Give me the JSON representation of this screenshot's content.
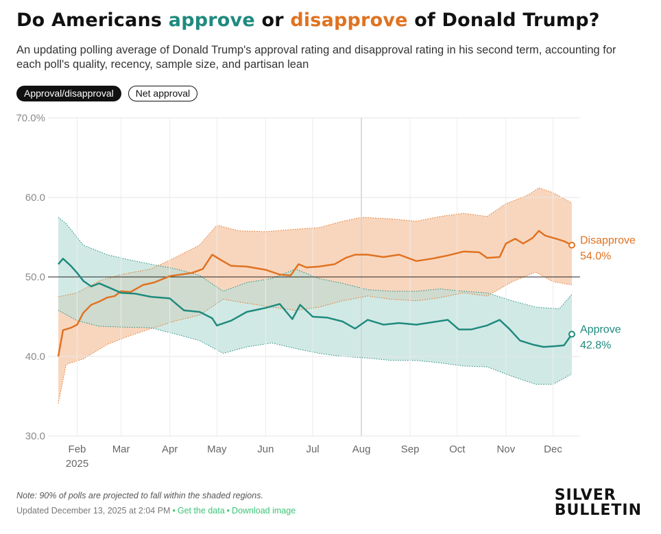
{
  "header": {
    "title_prefix": "Do Americans ",
    "title_approve": "approve",
    "title_middle": " or ",
    "title_disapprove": "disapprove",
    "title_suffix": " of Donald Trump?",
    "subtitle": "An updating polling average of Donald Trump's approval rating and disapproval rating in his second term, accounting for each poll's quality, recency, sample size, and partisan lean"
  },
  "toggles": {
    "approval_label": "Approval/disapproval",
    "net_label": "Net approval"
  },
  "footer": {
    "note": "Note: 90% of polls are projected to fall within the shaded regions.",
    "updated": "Updated December 13, 2025 at 2:04 PM",
    "get_data": "Get the data",
    "download": "Download image",
    "logo_line1": "SILVER",
    "logo_line2": "BULLETIN"
  },
  "colors": {
    "approve": "#1f8a7e",
    "disapprove": "#e07221",
    "approve_band": "#b8ddd7",
    "disapprove_band": "#f6ccae"
  },
  "chart_data": {
    "type": "line",
    "title": "Do Americans approve or disapprove of Donald Trump?",
    "ylim": [
      30,
      70
    ],
    "y_ticks": [
      "30.0",
      "40.0",
      "50.0",
      "60.0",
      "70.0%"
    ],
    "x_ticks": [
      "Feb",
      "Mar",
      "Apr",
      "May",
      "Jun",
      "Jul",
      "Aug",
      "Sep",
      "Oct",
      "Nov",
      "Dec"
    ],
    "x_year_label": "2025",
    "x_range": [
      "2025-01-20",
      "2025-12-13"
    ],
    "reference_line": 50,
    "grid": true,
    "legend": "direct labels at right",
    "series": [
      {
        "name": "Disapprove",
        "final_label": "54.0%",
        "points": [
          [
            "2025-01-20",
            40.0
          ],
          [
            "2025-01-23",
            43.3
          ],
          [
            "2025-01-28",
            43.6
          ],
          [
            "2025-02-01",
            44.0
          ],
          [
            "2025-02-05",
            45.5
          ],
          [
            "2025-02-10",
            46.5
          ],
          [
            "2025-02-15",
            46.9
          ],
          [
            "2025-02-20",
            47.4
          ],
          [
            "2025-02-25",
            47.6
          ],
          [
            "2025-03-01",
            48.2
          ],
          [
            "2025-03-07",
            48.1
          ],
          [
            "2025-03-15",
            49.0
          ],
          [
            "2025-03-22",
            49.3
          ],
          [
            "2025-04-01",
            50.1
          ],
          [
            "2025-04-08",
            50.3
          ],
          [
            "2025-04-15",
            50.5
          ],
          [
            "2025-04-22",
            51.0
          ],
          [
            "2025-04-28",
            52.8
          ],
          [
            "2025-05-03",
            52.2
          ],
          [
            "2025-05-10",
            51.4
          ],
          [
            "2025-05-20",
            51.3
          ],
          [
            "2025-06-01",
            50.9
          ],
          [
            "2025-06-10",
            50.3
          ],
          [
            "2025-06-17",
            50.2
          ],
          [
            "2025-06-22",
            51.6
          ],
          [
            "2025-06-27",
            51.2
          ],
          [
            "2025-07-05",
            51.3
          ],
          [
            "2025-07-15",
            51.6
          ],
          [
            "2025-07-22",
            52.4
          ],
          [
            "2025-07-28",
            52.8
          ],
          [
            "2025-08-05",
            52.8
          ],
          [
            "2025-08-15",
            52.5
          ],
          [
            "2025-08-25",
            52.8
          ],
          [
            "2025-09-05",
            52.0
          ],
          [
            "2025-09-15",
            52.3
          ],
          [
            "2025-09-25",
            52.7
          ],
          [
            "2025-10-05",
            53.2
          ],
          [
            "2025-10-15",
            53.1
          ],
          [
            "2025-10-20",
            52.4
          ],
          [
            "2025-10-28",
            52.5
          ],
          [
            "2025-11-01",
            54.2
          ],
          [
            "2025-11-07",
            54.8
          ],
          [
            "2025-11-12",
            54.2
          ],
          [
            "2025-11-18",
            54.9
          ],
          [
            "2025-11-22",
            55.8
          ],
          [
            "2025-11-26",
            55.2
          ],
          [
            "2025-12-03",
            54.8
          ],
          [
            "2025-12-08",
            54.5
          ],
          [
            "2025-12-13",
            54.0
          ]
        ],
        "band_upper": [
          [
            "2025-01-20",
            47.5
          ],
          [
            "2025-02-01",
            48.0
          ],
          [
            "2025-02-15",
            49.5
          ],
          [
            "2025-03-01",
            50.3
          ],
          [
            "2025-03-20",
            51.0
          ],
          [
            "2025-04-05",
            52.5
          ],
          [
            "2025-04-20",
            54.0
          ],
          [
            "2025-05-01",
            56.5
          ],
          [
            "2025-05-15",
            55.8
          ],
          [
            "2025-06-01",
            55.7
          ],
          [
            "2025-06-20",
            56.0
          ],
          [
            "2025-07-05",
            56.2
          ],
          [
            "2025-07-20",
            57.0
          ],
          [
            "2025-08-01",
            57.5
          ],
          [
            "2025-08-20",
            57.3
          ],
          [
            "2025-09-05",
            57.0
          ],
          [
            "2025-09-20",
            57.6
          ],
          [
            "2025-10-05",
            58.0
          ],
          [
            "2025-10-20",
            57.6
          ],
          [
            "2025-11-01",
            59.2
          ],
          [
            "2025-11-15",
            60.3
          ],
          [
            "2025-11-22",
            61.2
          ],
          [
            "2025-12-01",
            60.6
          ],
          [
            "2025-12-13",
            59.3
          ]
        ],
        "band_lower": [
          [
            "2025-01-20",
            34.1
          ],
          [
            "2025-01-25",
            39.0
          ],
          [
            "2025-02-05",
            39.7
          ],
          [
            "2025-02-20",
            41.5
          ],
          [
            "2025-03-05",
            42.5
          ],
          [
            "2025-03-20",
            43.5
          ],
          [
            "2025-04-05",
            44.5
          ],
          [
            "2025-04-20",
            45.2
          ],
          [
            "2025-05-05",
            47.2
          ],
          [
            "2025-05-20",
            46.7
          ],
          [
            "2025-06-05",
            46.2
          ],
          [
            "2025-06-20",
            45.8
          ],
          [
            "2025-07-05",
            46.2
          ],
          [
            "2025-07-20",
            47.0
          ],
          [
            "2025-08-05",
            47.6
          ],
          [
            "2025-08-20",
            47.2
          ],
          [
            "2025-09-05",
            47.0
          ],
          [
            "2025-09-20",
            47.4
          ],
          [
            "2025-10-05",
            48.0
          ],
          [
            "2025-10-20",
            47.6
          ],
          [
            "2025-11-05",
            49.4
          ],
          [
            "2025-11-20",
            50.6
          ],
          [
            "2025-12-01",
            49.4
          ],
          [
            "2025-12-13",
            49.0
          ]
        ]
      },
      {
        "name": "Approve",
        "final_label": "42.8%",
        "points": [
          [
            "2025-01-20",
            51.6
          ],
          [
            "2025-01-23",
            52.3
          ],
          [
            "2025-01-28",
            51.4
          ],
          [
            "2025-02-01",
            50.5
          ],
          [
            "2025-02-05",
            49.5
          ],
          [
            "2025-02-10",
            48.8
          ],
          [
            "2025-02-15",
            49.2
          ],
          [
            "2025-02-22",
            48.6
          ],
          [
            "2025-03-01",
            48.0
          ],
          [
            "2025-03-10",
            47.9
          ],
          [
            "2025-03-20",
            47.5
          ],
          [
            "2025-04-01",
            47.3
          ],
          [
            "2025-04-10",
            45.8
          ],
          [
            "2025-04-20",
            45.6
          ],
          [
            "2025-04-28",
            44.8
          ],
          [
            "2025-05-01",
            43.9
          ],
          [
            "2025-05-10",
            44.5
          ],
          [
            "2025-05-20",
            45.6
          ],
          [
            "2025-06-01",
            46.1
          ],
          [
            "2025-06-10",
            46.6
          ],
          [
            "2025-06-18",
            44.7
          ],
          [
            "2025-06-23",
            46.5
          ],
          [
            "2025-07-01",
            45.0
          ],
          [
            "2025-07-10",
            44.9
          ],
          [
            "2025-07-20",
            44.4
          ],
          [
            "2025-07-28",
            43.5
          ],
          [
            "2025-08-05",
            44.6
          ],
          [
            "2025-08-15",
            44.0
          ],
          [
            "2025-08-25",
            44.2
          ],
          [
            "2025-09-05",
            44.0
          ],
          [
            "2025-09-15",
            44.3
          ],
          [
            "2025-09-25",
            44.6
          ],
          [
            "2025-10-02",
            43.4
          ],
          [
            "2025-10-10",
            43.4
          ],
          [
            "2025-10-20",
            43.9
          ],
          [
            "2025-10-28",
            44.6
          ],
          [
            "2025-11-03",
            43.5
          ],
          [
            "2025-11-10",
            42.0
          ],
          [
            "2025-11-18",
            41.5
          ],
          [
            "2025-11-25",
            41.2
          ],
          [
            "2025-12-03",
            41.3
          ],
          [
            "2025-12-08",
            41.4
          ],
          [
            "2025-12-13",
            42.8
          ]
        ],
        "band_upper": [
          [
            "2025-01-20",
            57.5
          ],
          [
            "2025-01-25",
            56.7
          ],
          [
            "2025-02-05",
            54.0
          ],
          [
            "2025-02-20",
            52.8
          ],
          [
            "2025-03-05",
            52.2
          ],
          [
            "2025-03-20",
            51.6
          ],
          [
            "2025-04-05",
            51.0
          ],
          [
            "2025-04-20",
            50.2
          ],
          [
            "2025-05-05",
            48.2
          ],
          [
            "2025-05-20",
            49.3
          ],
          [
            "2025-06-05",
            49.8
          ],
          [
            "2025-06-20",
            51.0
          ],
          [
            "2025-07-05",
            49.8
          ],
          [
            "2025-07-20",
            49.2
          ],
          [
            "2025-08-05",
            48.4
          ],
          [
            "2025-08-20",
            48.2
          ],
          [
            "2025-09-05",
            48.2
          ],
          [
            "2025-09-20",
            48.5
          ],
          [
            "2025-10-05",
            48.2
          ],
          [
            "2025-10-20",
            48.0
          ],
          [
            "2025-11-05",
            47.0
          ],
          [
            "2025-11-20",
            46.2
          ],
          [
            "2025-12-05",
            46.0
          ],
          [
            "2025-12-13",
            47.8
          ]
        ],
        "band_lower": [
          [
            "2025-01-20",
            45.8
          ],
          [
            "2025-02-01",
            44.5
          ],
          [
            "2025-02-15",
            43.8
          ],
          [
            "2025-03-01",
            43.7
          ],
          [
            "2025-03-20",
            43.6
          ],
          [
            "2025-04-05",
            42.8
          ],
          [
            "2025-04-20",
            42.0
          ],
          [
            "2025-05-05",
            40.4
          ],
          [
            "2025-05-20",
            41.2
          ],
          [
            "2025-06-05",
            41.7
          ],
          [
            "2025-06-20",
            41.0
          ],
          [
            "2025-07-05",
            40.4
          ],
          [
            "2025-07-20",
            40.0
          ],
          [
            "2025-08-05",
            39.8
          ],
          [
            "2025-08-20",
            39.5
          ],
          [
            "2025-09-05",
            39.5
          ],
          [
            "2025-09-20",
            39.2
          ],
          [
            "2025-10-05",
            38.8
          ],
          [
            "2025-10-20",
            38.7
          ],
          [
            "2025-11-05",
            37.5
          ],
          [
            "2025-11-20",
            36.5
          ],
          [
            "2025-12-01",
            36.5
          ],
          [
            "2025-12-13",
            37.8
          ]
        ]
      }
    ]
  }
}
